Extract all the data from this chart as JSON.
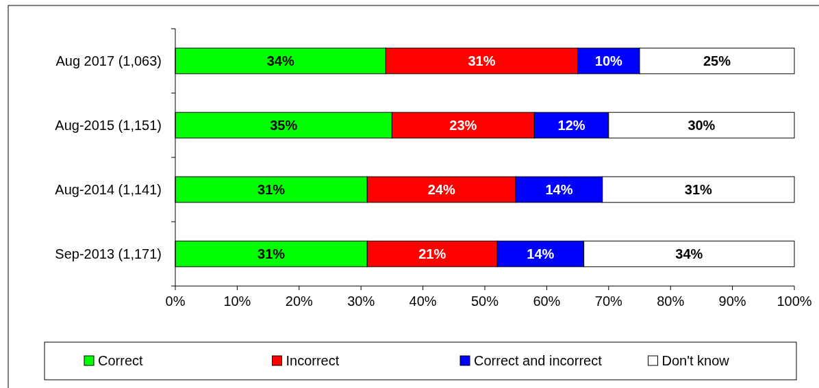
{
  "chart_data": {
    "type": "bar",
    "orientation": "horizontal",
    "stacked": true,
    "legend": "bottom",
    "grid": false,
    "categories": [
      "Aug 2017 (1,063)",
      "Aug-2015 (1,151)",
      "Aug-2014 (1,141)",
      "Sep-2013 (1,171)"
    ],
    "series": [
      {
        "name": "Correct",
        "color": "#00ff00",
        "values": [
          34,
          35,
          31,
          31
        ],
        "value_labels": [
          "34%",
          "35%",
          "31%",
          "31%"
        ]
      },
      {
        "name": "Incorrect",
        "color": "#ff0000",
        "values": [
          31,
          23,
          24,
          21
        ],
        "value_labels": [
          "31%",
          "23%",
          "24%",
          "21%"
        ]
      },
      {
        "name": "Correct and incorrect",
        "color": "#0000ff",
        "values": [
          10,
          12,
          14,
          14
        ],
        "value_labels": [
          "10%",
          "12%",
          "14%",
          "14%"
        ]
      },
      {
        "name": "Don't know",
        "color": "#ffffff",
        "values": [
          25,
          30,
          31,
          34
        ],
        "value_labels": [
          "25%",
          "30%",
          "31%",
          "34%"
        ]
      }
    ],
    "xlim": [
      0,
      100
    ],
    "xticks": [
      {
        "value": 0,
        "label": "0%"
      },
      {
        "value": 10,
        "label": "10%"
      },
      {
        "value": 20,
        "label": "20%"
      },
      {
        "value": 30,
        "label": "30%"
      },
      {
        "value": 40,
        "label": "40%"
      },
      {
        "value": 50,
        "label": "50%"
      },
      {
        "value": 60,
        "label": "60%"
      },
      {
        "value": 70,
        "label": "70%"
      },
      {
        "value": 80,
        "label": "80%"
      },
      {
        "value": 90,
        "label": "90%"
      },
      {
        "value": 100,
        "label": "100%"
      }
    ]
  }
}
